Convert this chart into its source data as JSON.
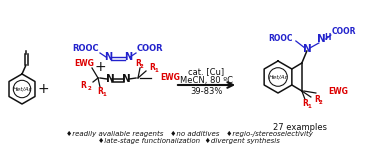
{
  "bg_color": "#ffffff",
  "red_color": "#dd0000",
  "blue_color": "#2222cc",
  "black_color": "#111111",
  "bottom_text_line1": "♦readily avaliable reagents   ♦no additives   ♦regio-/stereoselectivity",
  "bottom_text_line2": "♦late-stage functionalization  ♦divergent synthesis",
  "arrow_text_line1": "cat. [Cu]",
  "arrow_text_line2": "MeCN, 80 ºC",
  "arrow_text_line3": "39-83%",
  "examples_text": "27 examples",
  "figsize": [
    3.78,
    1.45
  ],
  "dpi": 100
}
